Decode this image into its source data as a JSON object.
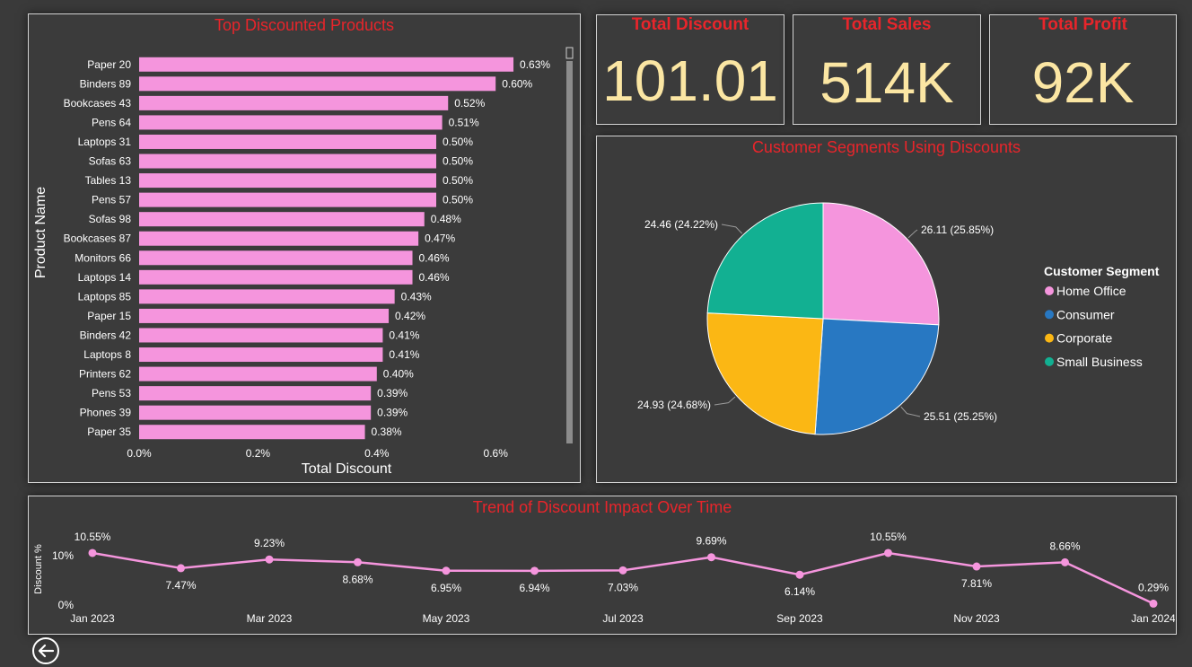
{
  "kpis": {
    "total_discount": {
      "label": "Total Discount",
      "value": "101.01"
    },
    "total_sales": {
      "label": "Total Sales",
      "value": "514K"
    },
    "total_profit": {
      "label": "Total Profit",
      "value": "92K"
    }
  },
  "colors": {
    "title_red": "#e8252b",
    "kpi_value": "#fbe6a3",
    "bar_pink": "#f595dd",
    "background": "#3a3a3a"
  },
  "chart_data": [
    {
      "type": "bar",
      "orientation": "horizontal",
      "title": "Top Discounted Products",
      "xlabel": "Total Discount",
      "ylabel": "Product Name",
      "xlim": [
        0,
        0.7
      ],
      "x_ticks": [
        "0.0%",
        "0.2%",
        "0.4%",
        "0.6%"
      ],
      "x_tick_values": [
        0,
        0.2,
        0.4,
        0.6
      ],
      "categories": [
        "Paper 20",
        "Binders 89",
        "Bookcases 43",
        "Pens 64",
        "Laptops 31",
        "Sofas 63",
        "Tables 13",
        "Pens 57",
        "Sofas 98",
        "Bookcases 87",
        "Monitors 66",
        "Laptops 14",
        "Laptops 85",
        "Paper 15",
        "Binders 42",
        "Laptops 8",
        "Printers 62",
        "Pens 53",
        "Phones 39",
        "Paper 35"
      ],
      "values": [
        0.63,
        0.6,
        0.52,
        0.51,
        0.5,
        0.5,
        0.5,
        0.5,
        0.48,
        0.47,
        0.46,
        0.46,
        0.43,
        0.42,
        0.41,
        0.41,
        0.4,
        0.39,
        0.39,
        0.38
      ],
      "labels": [
        "0.63%",
        "0.60%",
        "0.52%",
        "0.51%",
        "0.50%",
        "0.50%",
        "0.50%",
        "0.50%",
        "0.48%",
        "0.47%",
        "0.46%",
        "0.46%",
        "0.43%",
        "0.42%",
        "0.41%",
        "0.41%",
        "0.40%",
        "0.39%",
        "0.39%",
        "0.38%"
      ],
      "color": "#f595dd",
      "grid": false
    },
    {
      "type": "pie",
      "title": "Customer Segments Using Discounts",
      "legend_title": "Customer Segment",
      "legend_position": "right",
      "slices": [
        {
          "name": "Home Office",
          "value": 26.11,
          "label": "26.11 (25.85%)",
          "color": "#f595dd"
        },
        {
          "name": "Consumer",
          "value": 25.51,
          "label": "25.51 (25.25%)",
          "color": "#2878c2"
        },
        {
          "name": "Corporate",
          "value": 24.93,
          "label": "24.93 (24.68%)",
          "color": "#fbb714"
        },
        {
          "name": "Small Business",
          "value": 24.46,
          "label": "24.46 (24.22%)",
          "color": "#12b092"
        }
      ]
    },
    {
      "type": "line",
      "title": "Trend of Discount Impact Over Time",
      "ylabel": "Discount %",
      "ylim": [
        0,
        15
      ],
      "y_ticks": [
        "0%",
        "10%"
      ],
      "y_tick_values": [
        0,
        10
      ],
      "x_ticks": [
        "Jan 2023",
        "Mar 2023",
        "May 2023",
        "Jul 2023",
        "Sep 2023",
        "Nov 2023",
        "Jan 2024"
      ],
      "x_tick_index": [
        0,
        2,
        4,
        6,
        8,
        10,
        12
      ],
      "x": [
        "2023-01",
        "2023-02",
        "2023-03",
        "2023-04",
        "2023-05",
        "2023-06",
        "2023-07",
        "2023-08",
        "2023-09",
        "2023-10",
        "2023-11",
        "2023-12",
        "2024-01"
      ],
      "values": [
        10.55,
        7.47,
        9.23,
        8.68,
        6.95,
        6.94,
        7.03,
        9.69,
        6.14,
        10.55,
        7.81,
        8.66,
        0.29
      ],
      "labels": [
        "10.55%",
        "7.47%",
        "9.23%",
        "8.68%",
        "6.95%",
        "6.94%",
        "7.03%",
        "9.69%",
        "6.14%",
        "10.55%",
        "7.81%",
        "8.66%",
        "0.29%"
      ],
      "color": "#f595dd",
      "grid": false
    }
  ]
}
